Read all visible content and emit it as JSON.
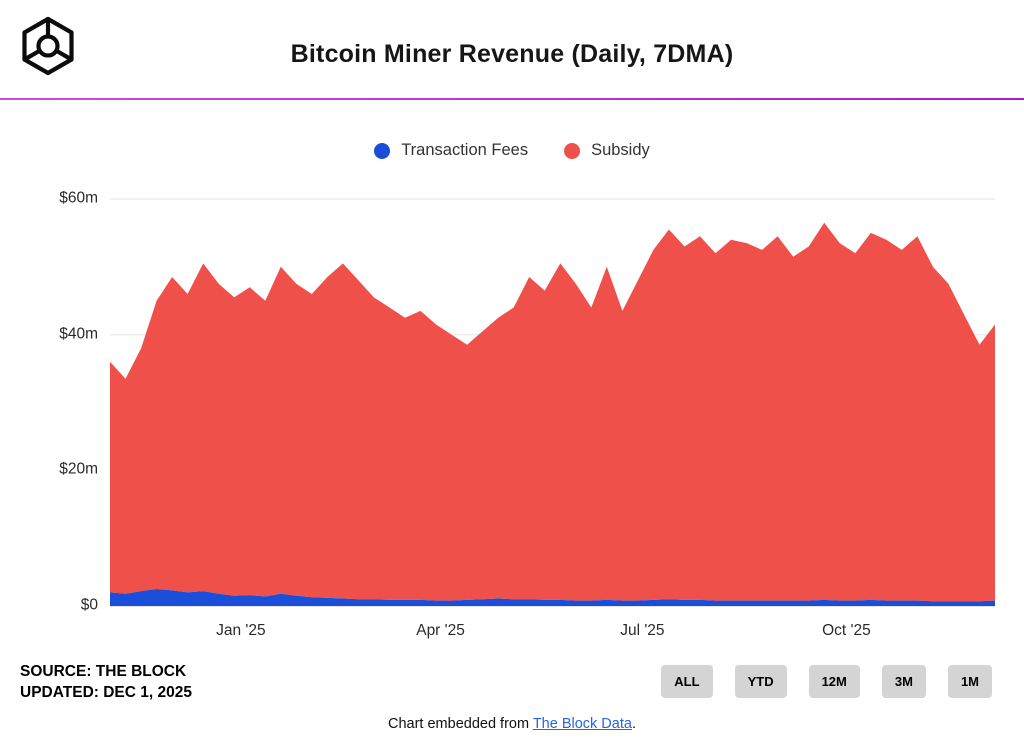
{
  "header": {
    "title": "Bitcoin Miner Revenue (Daily, 7DMA)"
  },
  "legend": [
    {
      "label": "Transaction Fees",
      "color": "#1a4ed8"
    },
    {
      "label": "Subsidy",
      "color": "#f0504a"
    }
  ],
  "chart_data": {
    "type": "area",
    "stacked": true,
    "title": "Bitcoin Miner Revenue (Daily, 7DMA)",
    "unit": "$m",
    "ylim": [
      0,
      60
    ],
    "grid": "horizontal",
    "legend_position": "top-center",
    "yticks": [
      {
        "label": "$60m",
        "v": 60
      },
      {
        "label": "$40m",
        "v": 40
      },
      {
        "label": "$20m",
        "v": 20
      },
      {
        "label": "$0",
        "v": 0
      }
    ],
    "xticks": [
      {
        "label": "Jan '25",
        "i": 8.43
      },
      {
        "label": "Apr '25",
        "i": 21.29
      },
      {
        "label": "Jul '25",
        "i": 34.29
      },
      {
        "label": "Oct '25",
        "i": 47.43
      }
    ],
    "x": [
      "2024-11-03",
      "2024-11-10",
      "2024-11-17",
      "2024-11-24",
      "2024-12-01",
      "2024-12-08",
      "2024-12-15",
      "2024-12-22",
      "2024-12-29",
      "2025-01-05",
      "2025-01-12",
      "2025-01-19",
      "2025-01-26",
      "2025-02-02",
      "2025-02-09",
      "2025-02-16",
      "2025-02-23",
      "2025-03-02",
      "2025-03-09",
      "2025-03-16",
      "2025-03-23",
      "2025-03-30",
      "2025-04-06",
      "2025-04-13",
      "2025-04-20",
      "2025-04-27",
      "2025-05-04",
      "2025-05-11",
      "2025-05-18",
      "2025-05-25",
      "2025-06-01",
      "2025-06-08",
      "2025-06-15",
      "2025-06-22",
      "2025-06-29",
      "2025-07-06",
      "2025-07-13",
      "2025-07-20",
      "2025-07-27",
      "2025-08-03",
      "2025-08-10",
      "2025-08-17",
      "2025-08-24",
      "2025-08-31",
      "2025-09-07",
      "2025-09-14",
      "2025-09-21",
      "2025-09-28",
      "2025-10-05",
      "2025-10-12",
      "2025-10-19",
      "2025-10-26",
      "2025-11-02",
      "2025-11-09",
      "2025-11-16",
      "2025-11-23",
      "2025-11-30",
      "2025-12-01"
    ],
    "series": [
      {
        "name": "Transaction Fees",
        "color": "#1a4ed8",
        "values": [
          2.0,
          1.8,
          2.2,
          2.5,
          2.3,
          2.0,
          2.2,
          1.8,
          1.5,
          1.6,
          1.4,
          1.8,
          1.5,
          1.3,
          1.2,
          1.1,
          1.0,
          1.0,
          0.9,
          0.9,
          0.9,
          0.8,
          0.8,
          0.9,
          1.0,
          1.1,
          1.0,
          1.0,
          0.9,
          0.9,
          0.8,
          0.8,
          0.9,
          0.8,
          0.8,
          0.9,
          1.0,
          0.9,
          0.9,
          0.8,
          0.8,
          0.8,
          0.8,
          0.8,
          0.8,
          0.8,
          0.9,
          0.8,
          0.8,
          0.9,
          0.8,
          0.8,
          0.8,
          0.7,
          0.7,
          0.7,
          0.7,
          0.8
        ]
      },
      {
        "name": "Subsidy",
        "color": "#f0504a",
        "values": [
          34.0,
          31.7,
          35.8,
          42.5,
          46.2,
          44.0,
          48.3,
          45.7,
          44.0,
          45.4,
          43.6,
          48.2,
          46.0,
          44.7,
          47.3,
          49.4,
          47.0,
          44.5,
          43.1,
          41.6,
          42.6,
          40.7,
          39.2,
          37.6,
          39.5,
          41.4,
          43.0,
          47.5,
          45.6,
          49.6,
          46.7,
          43.2,
          49.1,
          42.7,
          47.2,
          51.6,
          54.5,
          52.1,
          53.6,
          51.2,
          53.2,
          52.7,
          51.7,
          53.7,
          50.7,
          52.2,
          55.6,
          52.7,
          51.2,
          54.1,
          53.2,
          51.7,
          53.7,
          49.3,
          46.8,
          42.3,
          37.8,
          40.7
        ]
      }
    ]
  },
  "footer": {
    "source": "SOURCE: THE BLOCK",
    "updated": "UPDATED: DEC 1, 2025"
  },
  "range_buttons": [
    "ALL",
    "YTD",
    "12M",
    "3M",
    "1M"
  ],
  "embed": {
    "prefix": "Chart embedded from ",
    "link": "The Block Data",
    "suffix": "."
  }
}
